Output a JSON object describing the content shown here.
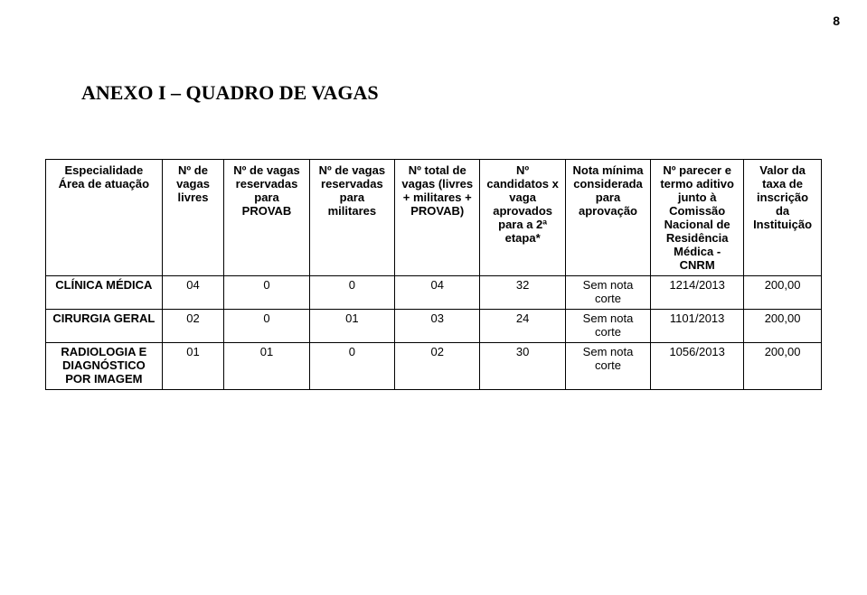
{
  "page_number": "8",
  "title": "ANEXO I – QUADRO DE VAGAS",
  "table": {
    "headers": {
      "specialty": "Especialidade Área de atuação",
      "livres": "Nº de vagas livres",
      "provab": "Nº de vagas reservadas para PROVAB",
      "militares": "Nº de vagas reservadas para militares",
      "total": "Nº total de vagas (livres + militares + PROVAB)",
      "candidatos": "Nº candidatos x vaga aprovados para a 2ª etapa*",
      "nota": "Nota mínima considerada para aprovação",
      "parecer": "Nº parecer e termo aditivo junto à Comissão Nacional de Residência Médica - CNRM",
      "valor": "Valor da taxa de inscrição da Instituição"
    },
    "rows": [
      {
        "specialty": "CLÍNICA MÉDICA",
        "livres": "04",
        "provab": "0",
        "militares": "0",
        "total": "04",
        "candidatos": "32",
        "nota": "Sem nota corte",
        "parecer": "1214/2013",
        "valor": "200,00"
      },
      {
        "specialty": "CIRURGIA GERAL",
        "livres": "02",
        "provab": "0",
        "militares": "01",
        "total": "03",
        "candidatos": "24",
        "nota": "Sem nota corte",
        "parecer": "1101/2013",
        "valor": "200,00"
      },
      {
        "specialty": "RADIOLOGIA E DIAGNÓSTICO POR IMAGEM",
        "livres": "01",
        "provab": "01",
        "militares": "0",
        "total": "02",
        "candidatos": "30",
        "nota": "Sem nota corte",
        "parecer": "1056/2013",
        "valor": "200,00"
      }
    ]
  }
}
